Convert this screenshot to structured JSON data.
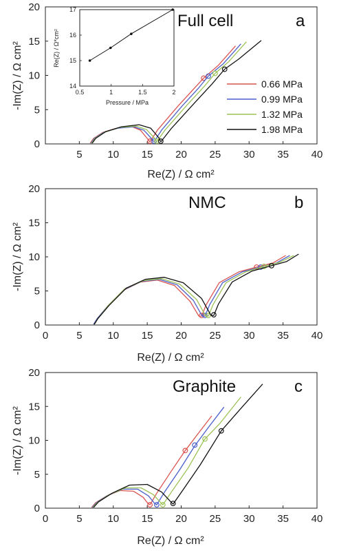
{
  "colors": {
    "0.66 MPa": "#d9534f",
    "0.99 MPa": "#4a5fc9",
    "1.32 MPa": "#9cc256",
    "1.98 MPa": "#111111"
  },
  "chart_data": [
    {
      "type": "line",
      "panel": "a",
      "title": "Full cell",
      "xlabel": "Re(Z) / Ω cm²",
      "ylabel": "-Im(Z) / Ω cm²",
      "xlim": [
        0,
        40
      ],
      "ylim": [
        0,
        20
      ],
      "xticks": [
        5,
        10,
        15,
        20,
        25,
        30,
        35,
        40
      ],
      "yticks": [
        0,
        5,
        10,
        15,
        20
      ],
      "legend": {
        "position": "right",
        "entries": [
          "0.66 MPa",
          "0.99 MPa",
          "1.32 MPa",
          "1.98 MPa"
        ]
      },
      "series": [
        {
          "name": "0.66 MPa",
          "x": [
            6.6,
            7.1,
            8.5,
            10.5,
            12.8,
            14.0,
            15.0,
            15.4,
            16.5,
            19.5,
            22.0,
            23.3,
            25.5,
            28.0
          ],
          "y": [
            0.1,
            0.8,
            1.7,
            2.3,
            2.5,
            2.0,
            0.8,
            0.3,
            2.0,
            5.5,
            8.2,
            9.6,
            11.5,
            14.3
          ],
          "markers": [
            {
              "x": 15.4,
              "y": 0.4
            },
            {
              "x": 23.3,
              "y": 9.6
            }
          ]
        },
        {
          "name": "0.99 MPa",
          "x": [
            6.7,
            7.2,
            8.6,
            10.7,
            13.1,
            14.5,
            15.6,
            16.0,
            17.1,
            20.1,
            22.6,
            24.0,
            26.2,
            28.8
          ],
          "y": [
            0.1,
            0.8,
            1.7,
            2.3,
            2.5,
            2.0,
            0.8,
            0.3,
            2.0,
            5.5,
            8.2,
            9.9,
            11.7,
            14.6
          ],
          "markers": [
            {
              "x": 16.0,
              "y": 0.4
            },
            {
              "x": 24.0,
              "y": 9.9
            }
          ]
        },
        {
          "name": "1.32 MPa",
          "x": [
            6.8,
            7.3,
            8.7,
            10.9,
            13.4,
            14.9,
            16.1,
            16.4,
            17.6,
            20.7,
            23.4,
            25.0,
            27.0,
            29.6
          ],
          "y": [
            0.1,
            0.8,
            1.7,
            2.4,
            2.6,
            2.1,
            0.8,
            0.3,
            2.0,
            5.5,
            8.4,
            10.3,
            12.0,
            14.9
          ],
          "markers": [
            {
              "x": 16.4,
              "y": 0.4
            },
            {
              "x": 25.0,
              "y": 10.3
            }
          ]
        },
        {
          "name": "1.98 MPa",
          "x": [
            6.9,
            7.4,
            8.9,
            11.2,
            13.8,
            15.5,
            16.7,
            17.0,
            18.5,
            21.7,
            24.5,
            26.4,
            28.5,
            31.8
          ],
          "y": [
            0.1,
            0.8,
            1.8,
            2.5,
            2.8,
            2.3,
            0.9,
            0.3,
            2.2,
            5.7,
            8.7,
            10.9,
            12.4,
            15.1
          ],
          "markers": [
            {
              "x": 17.0,
              "y": 0.4
            },
            {
              "x": 26.4,
              "y": 10.9
            }
          ]
        }
      ],
      "inset": {
        "type": "line",
        "xlabel": "Pressure / MPa",
        "ylabel": "Re(Z) / Ω*cm²",
        "xlim": [
          0.5,
          2
        ],
        "ylim": [
          14,
          17
        ],
        "xticks": [
          0.5,
          1,
          1.5,
          2
        ],
        "yticks": [
          14,
          15,
          16,
          17
        ],
        "x": [
          0.66,
          0.99,
          1.32,
          1.98
        ],
        "y": [
          15.0,
          15.5,
          16.05,
          17.0
        ]
      }
    },
    {
      "type": "line",
      "panel": "b",
      "title": "NMC",
      "xlabel": "Re(Z) / Ω cm²",
      "ylabel": "-Im(Z) / Ω cm²",
      "xlim": [
        0,
        40
      ],
      "ylim": [
        0,
        20
      ],
      "xticks": [
        0,
        5,
        10,
        15,
        20,
        25,
        30,
        35,
        40
      ],
      "yticks": [
        0,
        5,
        10,
        15,
        20
      ],
      "series": [
        {
          "name": "0.66 MPa",
          "x": [
            7.1,
            7.6,
            9.2,
            11.5,
            14.0,
            16.5,
            19.0,
            21.3,
            22.6,
            23.0,
            23.7,
            25.6,
            28.5,
            31.1,
            33.5,
            35.4
          ],
          "y": [
            0.1,
            0.9,
            2.8,
            5.1,
            6.3,
            6.6,
            5.8,
            3.5,
            1.3,
            1.3,
            3.0,
            6.2,
            7.8,
            8.5,
            9.1,
            10.2
          ],
          "markers": [
            {
              "x": 23.0,
              "y": 1.4
            },
            {
              "x": 31.1,
              "y": 8.5
            }
          ]
        },
        {
          "name": "0.99 MPa",
          "x": [
            7.1,
            7.6,
            9.2,
            11.6,
            14.2,
            16.8,
            19.4,
            21.8,
            23.1,
            23.5,
            24.2,
            26.1,
            29.0,
            31.7,
            34.0,
            36.0
          ],
          "y": [
            0.1,
            0.9,
            2.8,
            5.2,
            6.4,
            6.7,
            5.9,
            3.6,
            1.3,
            1.3,
            3.0,
            6.2,
            7.8,
            8.5,
            9.1,
            10.2
          ],
          "markers": [
            {
              "x": 23.5,
              "y": 1.4
            },
            {
              "x": 31.7,
              "y": 8.5
            }
          ]
        },
        {
          "name": "1.32 MPa",
          "x": [
            7.2,
            7.7,
            9.3,
            11.7,
            14.4,
            17.1,
            19.8,
            22.3,
            23.6,
            24.0,
            24.7,
            26.6,
            29.5,
            32.2,
            34.5,
            36.6
          ],
          "y": [
            0.1,
            0.9,
            2.9,
            5.3,
            6.5,
            6.8,
            6.0,
            3.7,
            1.3,
            1.3,
            3.0,
            6.2,
            7.8,
            8.6,
            9.2,
            10.2
          ],
          "markers": [
            {
              "x": 24.0,
              "y": 1.4
            },
            {
              "x": 32.2,
              "y": 8.6
            }
          ]
        },
        {
          "name": "1.98 MPa",
          "x": [
            7.2,
            7.7,
            9.4,
            11.9,
            14.7,
            17.5,
            20.3,
            23.0,
            24.4,
            24.8,
            25.5,
            27.5,
            30.4,
            33.3,
            35.5,
            37.3
          ],
          "y": [
            0.1,
            0.9,
            2.9,
            5.4,
            6.7,
            7.0,
            6.2,
            3.9,
            1.4,
            1.4,
            3.1,
            6.3,
            7.9,
            8.7,
            9.3,
            10.4
          ],
          "markers": [
            {
              "x": 24.8,
              "y": 1.5
            },
            {
              "x": 33.3,
              "y": 8.7
            }
          ]
        }
      ]
    },
    {
      "type": "line",
      "panel": "c",
      "title": "Graphite",
      "xlabel": "Re(Z) / Ω cm²",
      "ylabel": "-Im(Z) / Ω cm²",
      "xlim": [
        0,
        40
      ],
      "ylim": [
        0,
        20
      ],
      "xticks": [
        0,
        5,
        10,
        15,
        20,
        25,
        30,
        35,
        40
      ],
      "yticks": [
        0,
        5,
        10,
        15,
        20
      ],
      "series": [
        {
          "name": "0.66 MPa",
          "x": [
            6.8,
            7.4,
            9.0,
            11.0,
            13.0,
            14.4,
            15.1,
            15.4,
            16.4,
            18.5,
            20.6,
            22.5,
            24.5
          ],
          "y": [
            0.1,
            0.8,
            1.8,
            2.6,
            2.5,
            1.6,
            0.7,
            0.5,
            2.2,
            5.4,
            8.5,
            11.0,
            13.6
          ],
          "markers": [
            {
              "x": 15.4,
              "y": 0.5
            },
            {
              "x": 20.6,
              "y": 8.5
            }
          ]
        },
        {
          "name": "0.99 MPa",
          "x": [
            6.9,
            7.5,
            9.2,
            11.4,
            13.6,
            15.2,
            16.0,
            16.4,
            17.5,
            19.8,
            22.0,
            24.0,
            26.3
          ],
          "y": [
            0.1,
            0.8,
            1.9,
            2.8,
            2.8,
            1.8,
            0.8,
            0.5,
            2.3,
            5.7,
            9.2,
            11.9,
            14.9
          ],
          "markers": [
            {
              "x": 16.4,
              "y": 0.5
            },
            {
              "x": 22.0,
              "y": 9.3
            }
          ]
        },
        {
          "name": "1.32 MPa",
          "x": [
            7.0,
            7.6,
            9.4,
            11.8,
            14.1,
            15.9,
            16.9,
            17.3,
            18.5,
            21.0,
            23.4,
            25.7,
            28.8
          ],
          "y": [
            0.1,
            0.8,
            2.0,
            3.0,
            3.0,
            2.0,
            0.9,
            0.5,
            2.3,
            5.9,
            10.1,
            12.5,
            16.4
          ],
          "markers": [
            {
              "x": 17.3,
              "y": 0.5
            },
            {
              "x": 23.5,
              "y": 10.2
            }
          ]
        },
        {
          "name": "1.98 MPa",
          "x": [
            7.1,
            7.8,
            9.8,
            12.4,
            15.0,
            17.1,
            18.4,
            18.8,
            20.2,
            22.8,
            25.9,
            28.7,
            32.0
          ],
          "y": [
            0.1,
            0.9,
            2.2,
            3.4,
            3.5,
            2.4,
            1.0,
            0.6,
            2.6,
            6.4,
            11.4,
            14.6,
            18.3
          ],
          "markers": [
            {
              "x": 18.8,
              "y": 0.7
            },
            {
              "x": 25.9,
              "y": 11.4
            }
          ]
        }
      ]
    }
  ]
}
